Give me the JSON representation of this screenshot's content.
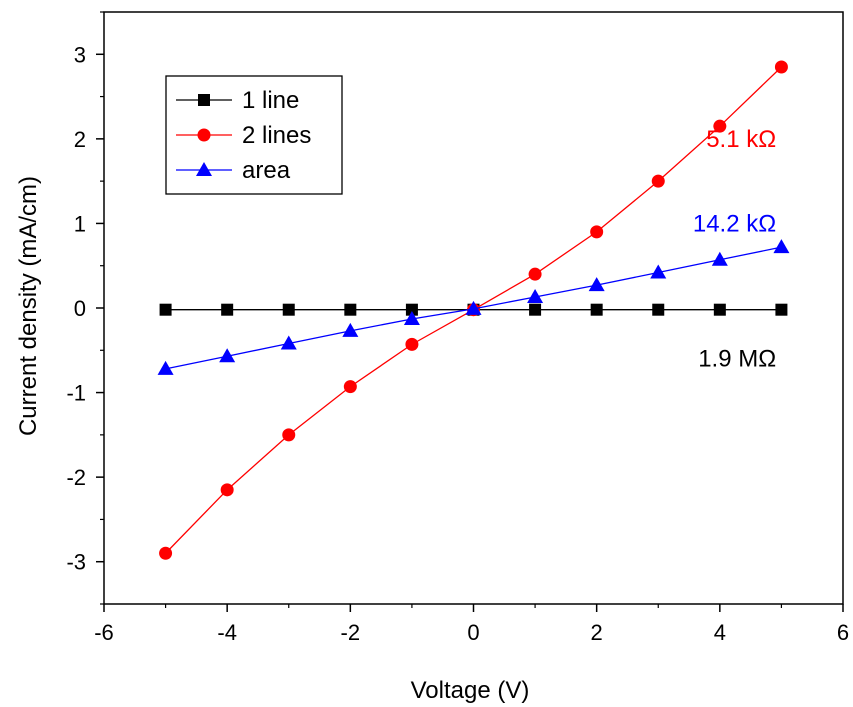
{
  "chart_data": {
    "type": "line",
    "title": "",
    "xlabel": "Voltage (V)",
    "ylabel": "Current density (mA/cm)",
    "xlim": [
      -6,
      6
    ],
    "ylim": [
      -3.5,
      3.5
    ],
    "xticks": [
      -6,
      -4,
      -2,
      0,
      2,
      4,
      6
    ],
    "yticks": [
      -3,
      -2,
      -1,
      0,
      1,
      2,
      3
    ],
    "xtick_labels": [
      "-6",
      "-4",
      "-2",
      "0",
      "2",
      "4",
      "6"
    ],
    "ytick_labels": [
      "-3",
      "-2",
      "-1",
      "0",
      "1",
      "2",
      "3"
    ],
    "grid": false,
    "legend_position": "top-left",
    "x": [
      -5,
      -4,
      -3,
      -2,
      -1,
      0,
      1,
      2,
      3,
      4,
      5
    ],
    "series": [
      {
        "name": "1 line",
        "marker": "square",
        "color": "#000000",
        "values": [
          -0.02,
          -0.02,
          -0.02,
          -0.02,
          -0.02,
          -0.02,
          -0.02,
          -0.02,
          -0.02,
          -0.02,
          -0.02
        ]
      },
      {
        "name": "2 lines",
        "marker": "circle",
        "color": "#ff0000",
        "values": [
          -2.9,
          -2.15,
          -1.5,
          -0.93,
          -0.43,
          -0.02,
          0.4,
          0.9,
          1.5,
          2.15,
          2.85
        ]
      },
      {
        "name": "area",
        "marker": "triangle",
        "color": "#0000ff",
        "values": [
          -0.72,
          -0.57,
          -0.42,
          -0.27,
          -0.13,
          -0.01,
          0.13,
          0.27,
          0.42,
          0.57,
          0.72
        ]
      }
    ],
    "annotations": [
      {
        "text": "5.1 kΩ",
        "color": "#ff0000",
        "x": 4.85,
        "y": 2.0
      },
      {
        "text": "14.2 kΩ",
        "color": "#0000ff",
        "x": 4.85,
        "y": 1.0
      },
      {
        "text": "1.9 MΩ",
        "color": "#000000",
        "x": 4.85,
        "y": -0.6
      }
    ]
  }
}
